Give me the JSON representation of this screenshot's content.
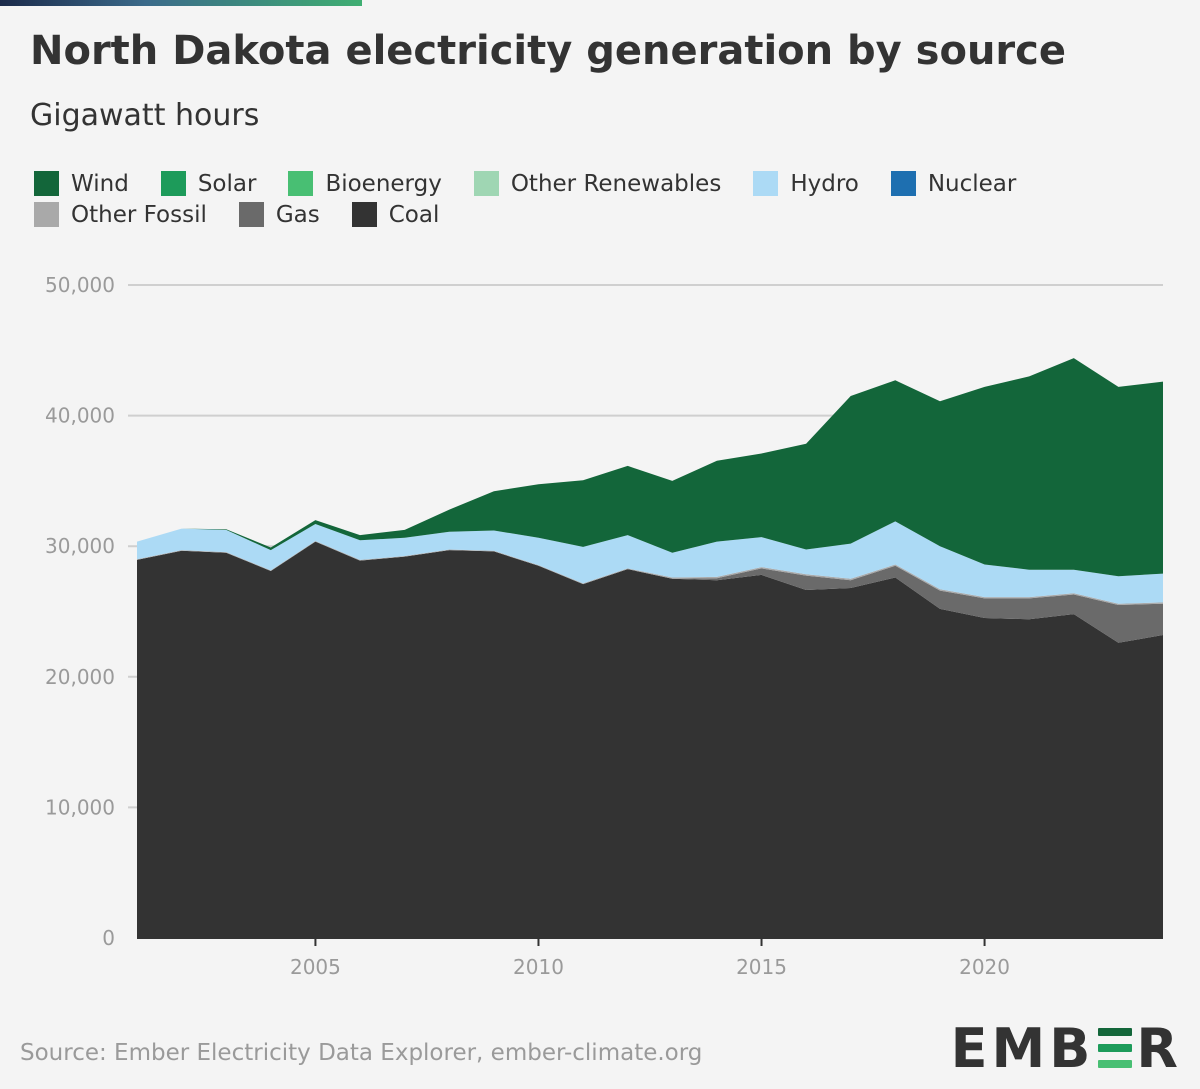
{
  "title": "North Dakota electricity generation by source",
  "subtitle": "Gigawatt hours",
  "legend": [
    {
      "label": "Wind",
      "color": "#13663a"
    },
    {
      "label": "Solar",
      "color": "#1d9b5a"
    },
    {
      "label": "Bioenergy",
      "color": "#48bf73"
    },
    {
      "label": "Other Renewables",
      "color": "#9fd6b3"
    },
    {
      "label": "Hydro",
      "color": "#acdaf5"
    },
    {
      "label": "Nuclear",
      "color": "#1e6fb0"
    },
    {
      "label": "Other Fossil",
      "color": "#a9a9a9"
    },
    {
      "label": "Gas",
      "color": "#6a6a6a"
    },
    {
      "label": "Coal",
      "color": "#333333"
    }
  ],
  "source": "Source: Ember Electricity Data Explorer, ember-climate.org",
  "logo_text": "EMBER",
  "chart_data": {
    "type": "area",
    "stacked": true,
    "title": "North Dakota electricity generation by source",
    "subtitle": "Gigawatt hours",
    "x": [
      2001,
      2002,
      2003,
      2004,
      2005,
      2006,
      2007,
      2008,
      2009,
      2010,
      2011,
      2012,
      2013,
      2014,
      2015,
      2016,
      2017,
      2018,
      2019,
      2020,
      2021,
      2022,
      2023,
      2024
    ],
    "x_ticks": [
      2005,
      2010,
      2015,
      2020
    ],
    "y_ticks": [
      0,
      10000,
      20000,
      30000,
      40000,
      50000
    ],
    "y_tick_labels": [
      "0",
      "10,000",
      "20,000",
      "30,000",
      "40,000",
      "50,000"
    ],
    "ylim": [
      0,
      50000
    ],
    "grid": "horizontal",
    "legend_position": "top",
    "series": [
      {
        "name": "Coal",
        "color": "#333333",
        "values": [
          28950,
          29650,
          29500,
          28100,
          30350,
          28900,
          29200,
          29700,
          29600,
          28500,
          27100,
          28250,
          27500,
          27400,
          27800,
          26650,
          26800,
          27600,
          25200,
          24500,
          24400,
          24800,
          22600,
          23200
        ]
      },
      {
        "name": "Gas",
        "color": "#6a6a6a",
        "values": [
          0,
          0,
          0,
          0,
          0,
          0,
          0,
          0,
          0,
          0,
          0,
          0,
          0,
          150,
          500,
          1100,
          600,
          900,
          1400,
          1500,
          1600,
          1500,
          2900,
          2400
        ]
      },
      {
        "name": "Other Fossil",
        "color": "#a9a9a9",
        "values": [
          50,
          50,
          50,
          50,
          50,
          50,
          50,
          50,
          50,
          50,
          50,
          50,
          100,
          100,
          100,
          100,
          100,
          100,
          100,
          100,
          100,
          100,
          100,
          100
        ]
      },
      {
        "name": "Nuclear",
        "color": "#1e6fb0",
        "values": [
          0,
          0,
          0,
          0,
          0,
          0,
          0,
          0,
          0,
          0,
          0,
          0,
          0,
          0,
          0,
          0,
          0,
          0,
          0,
          0,
          0,
          0,
          0,
          0
        ]
      },
      {
        "name": "Hydro",
        "color": "#acdaf5",
        "values": [
          1350,
          1650,
          1700,
          1550,
          1300,
          1500,
          1400,
          1350,
          1550,
          2100,
          2800,
          2550,
          1900,
          2700,
          2300,
          1900,
          2700,
          3300,
          3300,
          2500,
          2100,
          1800,
          2100,
          2200
        ]
      },
      {
        "name": "Other Renewables",
        "color": "#9fd6b3",
        "values": [
          0,
          0,
          0,
          0,
          0,
          0,
          0,
          0,
          0,
          0,
          0,
          0,
          0,
          0,
          0,
          0,
          0,
          0,
          0,
          0,
          0,
          0,
          0,
          0
        ]
      },
      {
        "name": "Bioenergy",
        "color": "#48bf73",
        "values": [
          0,
          0,
          0,
          0,
          0,
          0,
          0,
          0,
          0,
          0,
          0,
          0,
          0,
          0,
          0,
          0,
          0,
          0,
          0,
          0,
          0,
          0,
          0,
          0
        ]
      },
      {
        "name": "Solar",
        "color": "#1d9b5a",
        "values": [
          0,
          0,
          0,
          0,
          0,
          0,
          0,
          0,
          0,
          0,
          0,
          0,
          0,
          0,
          0,
          0,
          0,
          0,
          0,
          0,
          0,
          0,
          0,
          0
        ]
      },
      {
        "name": "Wind",
        "color": "#13663a",
        "values": [
          0,
          0,
          50,
          200,
          300,
          400,
          600,
          1700,
          3000,
          4100,
          5100,
          5300,
          5500,
          6200,
          6400,
          8100,
          11300,
          10800,
          11100,
          13600,
          14800,
          16200,
          14500,
          14700
        ]
      }
    ]
  }
}
